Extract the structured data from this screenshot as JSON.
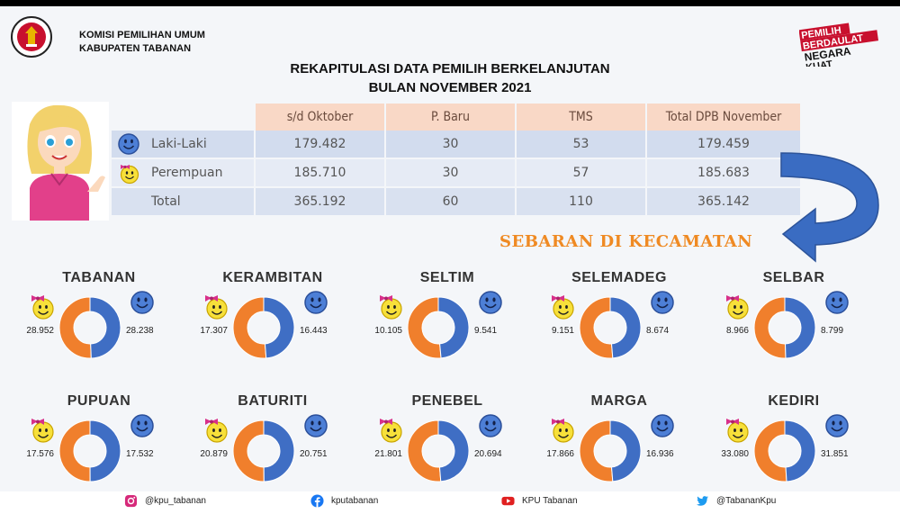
{
  "org": {
    "line1": "KOMISI PEMILIHAN UMUM",
    "line2": "KABUPATEN TABANAN"
  },
  "logo_text": "KOMISI PEMILIHAN UMUM",
  "slogan": [
    "PEMILIH",
    "BERDAULAT",
    "NEGARA",
    "KUAT"
  ],
  "title": {
    "line1": "REKAPITULASI DATA PEMILIH BERKELANJUTAN",
    "line2": "BULAN NOVEMBER 2021"
  },
  "table": {
    "headers": [
      "s/d Oktober",
      "P. Baru",
      "TMS",
      "Total DPB November"
    ],
    "rows": [
      {
        "label": "Laki-Laki",
        "cells": [
          "179.482",
          "30",
          "53",
          "179.459"
        ]
      },
      {
        "label": "Perempuan",
        "cells": [
          "185.710",
          "30",
          "57",
          "185.683"
        ]
      },
      {
        "label": "Total",
        "cells": [
          "365.192",
          "60",
          "110",
          "365.142"
        ]
      }
    ]
  },
  "section_label": "SEBARAN DI KECAMATAN",
  "chart_data": {
    "type": "pie",
    "series": [
      {
        "values_female": [
          28952,
          17307,
          10105,
          9151,
          8966,
          17576,
          20879,
          21801,
          17866,
          33080
        ]
      },
      {
        "values_male": [
          28238,
          16443,
          9541,
          8674,
          8799,
          17532,
          20751,
          20694,
          16936,
          31851
        ]
      }
    ],
    "districts": [
      {
        "name": "TABANAN",
        "female": "28.952",
        "male": "28.238",
        "f": 28952,
        "m": 28238
      },
      {
        "name": "KERAMBITAN",
        "female": "17.307",
        "male": "16.443",
        "f": 17307,
        "m": 16443
      },
      {
        "name": "SELTIM",
        "female": "10.105",
        "male": "9.541",
        "f": 10105,
        "m": 9541
      },
      {
        "name": "SELEMADEG",
        "female": "9.151",
        "male": "8.674",
        "f": 9151,
        "m": 8674
      },
      {
        "name": "SELBAR",
        "female": "8.966",
        "male": "8.799",
        "f": 8966,
        "m": 8799
      },
      {
        "name": "PUPUAN",
        "female": "17.576",
        "male": "17.532",
        "f": 17576,
        "m": 17532
      },
      {
        "name": "BATURITI",
        "female": "20.879",
        "male": "20.751",
        "f": 20879,
        "m": 20751
      },
      {
        "name": "PENEBEL",
        "female": "21.801",
        "male": "20.694",
        "f": 21801,
        "m": 20694
      },
      {
        "name": "MARGA",
        "female": "17.866",
        "male": "16.936",
        "f": 17866,
        "m": 16936
      },
      {
        "name": "KEDIRI",
        "female": "33.080",
        "male": "31.851",
        "f": 33080,
        "m": 31851
      }
    ],
    "colors": {
      "female": "#f07f2c",
      "male": "#3f6ec4"
    }
  },
  "footer": [
    {
      "icon": "instagram-icon",
      "text": "@kpu_tabanan"
    },
    {
      "icon": "facebook-icon",
      "text": "kputabanan"
    },
    {
      "icon": "youtube-icon",
      "text": "KPU Tabanan"
    },
    {
      "icon": "twitter-icon",
      "text": "@TabananKpu"
    }
  ]
}
